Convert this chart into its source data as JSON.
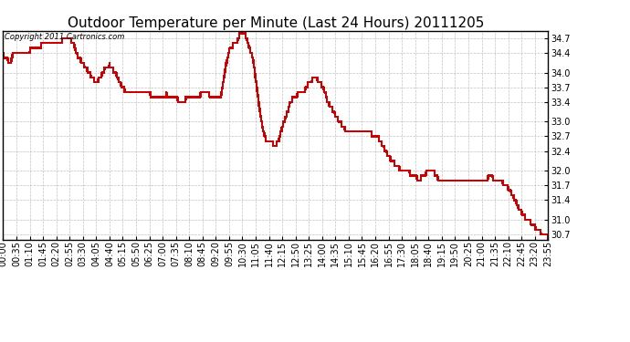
{
  "title": "Outdoor Temperature per Minute (Last 24 Hours) 20111205",
  "copyright_text": "Copyright 2011 Cartronics.com",
  "line_color": "#cc0000",
  "bg_color": "#ffffff",
  "plot_bg_color": "#ffffff",
  "grid_color": "#bbbbbb",
  "ylim": [
    30.6,
    34.85
  ],
  "yticks": [
    30.7,
    31.0,
    31.4,
    31.7,
    32.0,
    32.4,
    32.7,
    33.0,
    33.4,
    33.7,
    34.0,
    34.4,
    34.7
  ],
  "title_fontsize": 11,
  "copyright_fontsize": 6,
  "tick_fontsize": 7,
  "line_width": 1.0,
  "x_tick_interval": 35,
  "total_minutes": 1436,
  "waypoints": [
    [
      0,
      34.35
    ],
    [
      10,
      34.3
    ],
    [
      18,
      34.15
    ],
    [
      25,
      34.35
    ],
    [
      35,
      34.4
    ],
    [
      55,
      34.4
    ],
    [
      70,
      34.45
    ],
    [
      85,
      34.5
    ],
    [
      100,
      34.55
    ],
    [
      130,
      34.6
    ],
    [
      155,
      34.65
    ],
    [
      168,
      34.7
    ],
    [
      180,
      34.65
    ],
    [
      185,
      34.6
    ],
    [
      195,
      34.35
    ],
    [
      210,
      34.2
    ],
    [
      225,
      34.0
    ],
    [
      240,
      33.85
    ],
    [
      250,
      33.85
    ],
    [
      260,
      33.95
    ],
    [
      270,
      34.1
    ],
    [
      280,
      34.15
    ],
    [
      285,
      34.1
    ],
    [
      295,
      34.0
    ],
    [
      310,
      33.75
    ],
    [
      330,
      33.55
    ],
    [
      345,
      33.55
    ],
    [
      360,
      33.6
    ],
    [
      370,
      33.65
    ],
    [
      380,
      33.6
    ],
    [
      395,
      33.5
    ],
    [
      415,
      33.5
    ],
    [
      430,
      33.55
    ],
    [
      445,
      33.5
    ],
    [
      460,
      33.45
    ],
    [
      480,
      33.45
    ],
    [
      500,
      33.5
    ],
    [
      520,
      33.55
    ],
    [
      535,
      33.6
    ],
    [
      550,
      33.5
    ],
    [
      565,
      33.5
    ],
    [
      575,
      33.55
    ],
    [
      585,
      34.1
    ],
    [
      595,
      34.45
    ],
    [
      605,
      34.55
    ],
    [
      615,
      34.6
    ],
    [
      622,
      34.75
    ],
    [
      628,
      34.8
    ],
    [
      633,
      34.8
    ],
    [
      638,
      34.75
    ],
    [
      643,
      34.65
    ],
    [
      648,
      34.5
    ],
    [
      653,
      34.4
    ],
    [
      658,
      34.3
    ],
    [
      663,
      34.0
    ],
    [
      668,
      33.7
    ],
    [
      673,
      33.4
    ],
    [
      678,
      33.1
    ],
    [
      685,
      32.8
    ],
    [
      692,
      32.65
    ],
    [
      700,
      32.55
    ],
    [
      710,
      32.55
    ],
    [
      718,
      32.52
    ],
    [
      725,
      32.6
    ],
    [
      735,
      32.9
    ],
    [
      745,
      33.1
    ],
    [
      755,
      33.35
    ],
    [
      765,
      33.5
    ],
    [
      775,
      33.55
    ],
    [
      785,
      33.6
    ],
    [
      795,
      33.65
    ],
    [
      805,
      33.8
    ],
    [
      813,
      33.85
    ],
    [
      820,
      33.9
    ],
    [
      828,
      33.85
    ],
    [
      835,
      33.8
    ],
    [
      845,
      33.65
    ],
    [
      855,
      33.4
    ],
    [
      870,
      33.2
    ],
    [
      885,
      33.0
    ],
    [
      900,
      32.85
    ],
    [
      915,
      32.8
    ],
    [
      930,
      32.75
    ],
    [
      950,
      32.75
    ],
    [
      970,
      32.75
    ],
    [
      990,
      32.65
    ],
    [
      1010,
      32.35
    ],
    [
      1030,
      32.15
    ],
    [
      1050,
      32.0
    ],
    [
      1060,
      32.0
    ],
    [
      1070,
      31.95
    ],
    [
      1080,
      31.9
    ],
    [
      1090,
      31.85
    ],
    [
      1100,
      31.85
    ],
    [
      1110,
      31.9
    ],
    [
      1118,
      32.0
    ],
    [
      1125,
      32.05
    ],
    [
      1132,
      32.0
    ],
    [
      1140,
      31.9
    ],
    [
      1150,
      31.8
    ],
    [
      1165,
      31.75
    ],
    [
      1185,
      31.75
    ],
    [
      1200,
      31.75
    ],
    [
      1215,
      31.8
    ],
    [
      1225,
      31.85
    ],
    [
      1235,
      31.85
    ],
    [
      1245,
      31.8
    ],
    [
      1255,
      31.75
    ],
    [
      1265,
      31.75
    ],
    [
      1272,
      31.8
    ],
    [
      1280,
      31.9
    ],
    [
      1290,
      31.85
    ],
    [
      1300,
      31.8
    ],
    [
      1315,
      31.75
    ],
    [
      1330,
      31.65
    ],
    [
      1345,
      31.45
    ],
    [
      1360,
      31.2
    ],
    [
      1375,
      31.05
    ],
    [
      1395,
      30.9
    ],
    [
      1415,
      30.75
    ],
    [
      1430,
      30.7
    ],
    [
      1435,
      30.65
    ]
  ]
}
